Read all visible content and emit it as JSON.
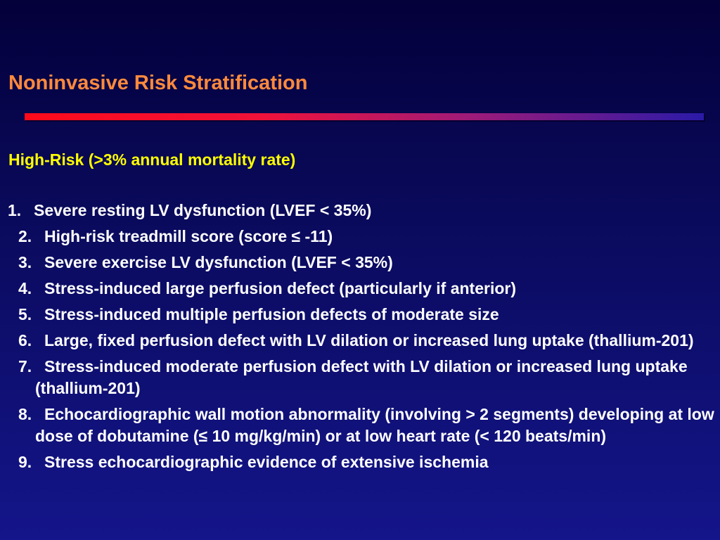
{
  "slide": {
    "title": "Noninvasive Risk Stratification",
    "subtitle": "High-Risk (>3% annual mortality rate)",
    "items": [
      {
        "number": "1.",
        "text": "Severe resting LV dysfunction (LVEF < 35%)"
      },
      {
        "number": "2.",
        "text": "High-risk treadmill score (score ≤ -11)"
      },
      {
        "number": "3.",
        "text": "Severe exercise LV dysfunction (LVEF < 35%)"
      },
      {
        "number": "4.",
        "text": "Stress-induced large perfusion defect  (particularly if anterior)"
      },
      {
        "number": "5.",
        "text": "Stress-induced multiple perfusion defects of moderate size"
      },
      {
        "number": "6.",
        "text": "Large, fixed perfusion defect with LV dilation or increased lung uptake (thallium-201)"
      },
      {
        "number": "7.",
        "text": "Stress-induced moderate perfusion defect with LV dilation or increased lung uptake (thallium-201)"
      },
      {
        "number": "8.",
        "text": "Echocardiographic wall motion abnormality (involving > 2 segments) developing at low dose of dobutamine (≤ 10 mg/kg/min) or at low heart rate (< 120 beats/min)"
      },
      {
        "number": "9.",
        "text": "Stress echocardiographic evidence of extensive ischemia"
      }
    ]
  },
  "colors": {
    "title": "#ff8a3c",
    "subtitle": "#ffff00",
    "body_text": "#ffffff",
    "background_top": "#03003a",
    "background_bottom": "#14158a",
    "rule_start": "#ff0a1a",
    "rule_end": "#2a1aa8"
  }
}
